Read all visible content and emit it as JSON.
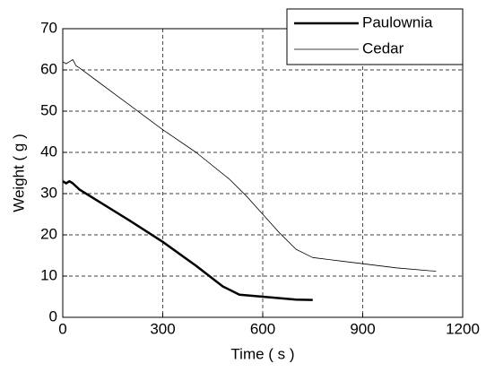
{
  "chart_data": {
    "type": "line",
    "xlabel": "Time ( s )",
    "ylabel": "Weight ( g )",
    "xlim": [
      0,
      1200
    ],
    "xticks": [
      0,
      300,
      600,
      900,
      1200
    ],
    "ylim": [
      0,
      70
    ],
    "yticks": [
      0,
      10,
      20,
      30,
      40,
      50,
      60,
      70
    ],
    "grid": true,
    "legend": "upper right",
    "series": [
      {
        "name": "Paulownia",
        "color": "#000000",
        "linewidth": 2.5,
        "x": [
          0,
          10,
          20,
          30,
          50,
          100,
          200,
          300,
          400,
          480,
          530,
          600,
          700,
          750
        ],
        "values": [
          33,
          32.5,
          33,
          32.5,
          31,
          28.5,
          23.5,
          18.3,
          12.5,
          7.5,
          5.5,
          5,
          4.3,
          4.2
        ]
      },
      {
        "name": "Cedar",
        "color": "#000000",
        "linewidth": 0.8,
        "x": [
          0,
          10,
          20,
          30,
          40,
          50,
          100,
          200,
          300,
          400,
          500,
          550,
          600,
          650,
          700,
          750,
          800,
          900,
          1000,
          1100,
          1120
        ],
        "values": [
          62,
          61.5,
          62,
          62.5,
          61,
          60.5,
          57.5,
          51.5,
          45.5,
          40,
          33.5,
          29.5,
          25,
          20.5,
          16.5,
          14.5,
          14,
          13,
          12,
          11.3,
          11.2
        ]
      }
    ]
  }
}
